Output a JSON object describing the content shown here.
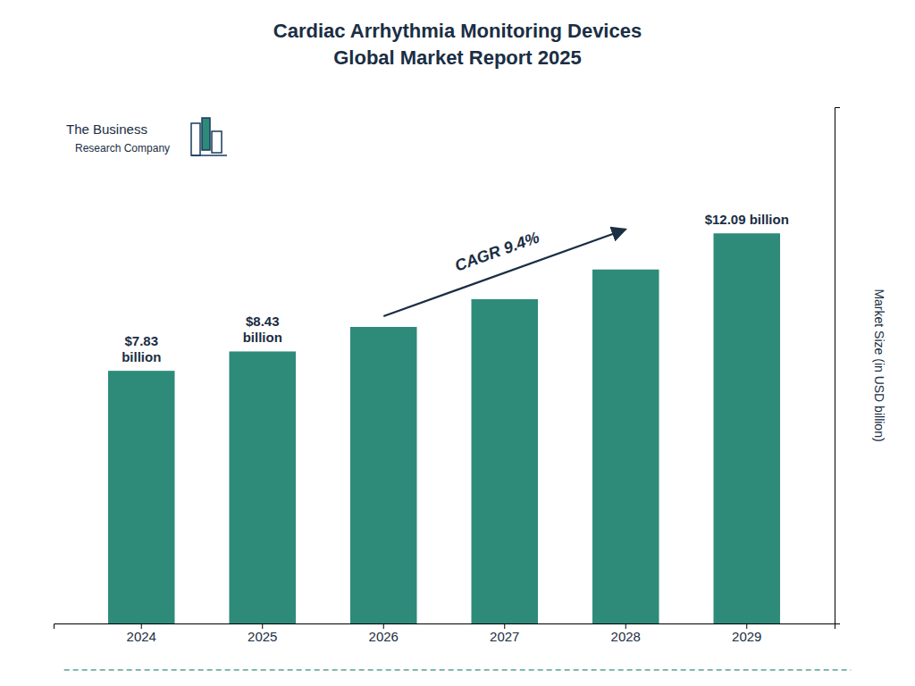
{
  "chart_data": {
    "type": "bar",
    "title": "Cardiac Arrhythmia Monitoring Devices\nGlobal Market Report 2025",
    "categories": [
      "2024",
      "2025",
      "2026",
      "2027",
      "2028",
      "2029"
    ],
    "values": [
      7.83,
      8.43,
      9.19,
      10.05,
      10.97,
      12.09
    ],
    "color": "#2e8b7a",
    "ylim": [
      0,
      16.0
    ],
    "yticks": [],
    "ylabel": "Market Size (in USD billion)",
    "tick_labels": "x",
    "grid": false,
    "data_labels": true,
    "value_labels": [
      "$7.83\nbillion",
      "$8.43\nbillion",
      null,
      null,
      null,
      "$12.09 billion"
    ],
    "annotations": [
      "CAGR 9.4%",
      "The Business",
      "Research Company"
    ]
  }
}
